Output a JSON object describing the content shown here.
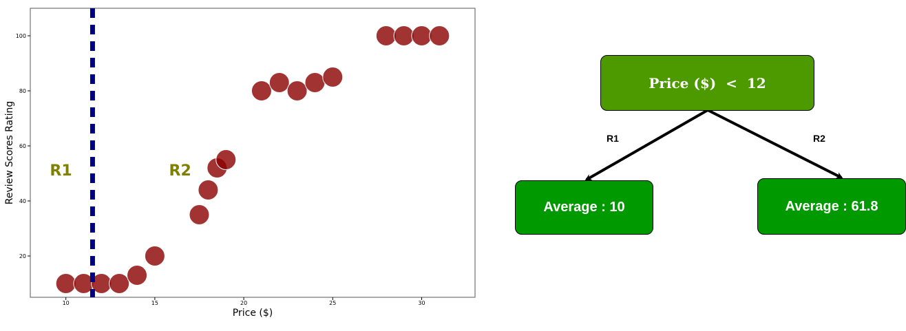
{
  "chart_data": {
    "type": "scatter",
    "xlabel": "Price ($)",
    "ylabel": "Review Scores Rating",
    "xlim": [
      8,
      33
    ],
    "ylim": [
      5,
      110
    ],
    "xticks": [
      10,
      15,
      20,
      25,
      30
    ],
    "yticks": [
      20,
      40,
      60,
      80,
      100
    ],
    "marker_color": "#8b0000",
    "split_line": {
      "x": 11.5,
      "color": "#000080",
      "style": "dashed"
    },
    "region_labels": [
      {
        "text": "R1",
        "x": 9.1,
        "y": 50
      },
      {
        "text": "R2",
        "x": 15.8,
        "y": 50
      }
    ],
    "region_label_color": "#808000",
    "points": [
      {
        "x": 10,
        "y": 10
      },
      {
        "x": 11,
        "y": 10
      },
      {
        "x": 12,
        "y": 10
      },
      {
        "x": 13,
        "y": 10
      },
      {
        "x": 14,
        "y": 13
      },
      {
        "x": 15,
        "y": 20
      },
      {
        "x": 17.5,
        "y": 35
      },
      {
        "x": 18,
        "y": 44
      },
      {
        "x": 18.5,
        "y": 52
      },
      {
        "x": 19,
        "y": 55
      },
      {
        "x": 21,
        "y": 80
      },
      {
        "x": 22,
        "y": 83
      },
      {
        "x": 23,
        "y": 80
      },
      {
        "x": 24,
        "y": 83
      },
      {
        "x": 25,
        "y": 85
      },
      {
        "x": 28,
        "y": 100
      },
      {
        "x": 29,
        "y": 100
      },
      {
        "x": 30,
        "y": 100
      },
      {
        "x": 31,
        "y": 100
      }
    ]
  },
  "tree": {
    "root": "Price ($)  <  12",
    "edge_left": "R1",
    "edge_right": "R2",
    "leaf_left": "Average : 10",
    "leaf_right": "Average : 61.8",
    "root_color": "#4d9a00",
    "leaf_color": "#009900"
  }
}
